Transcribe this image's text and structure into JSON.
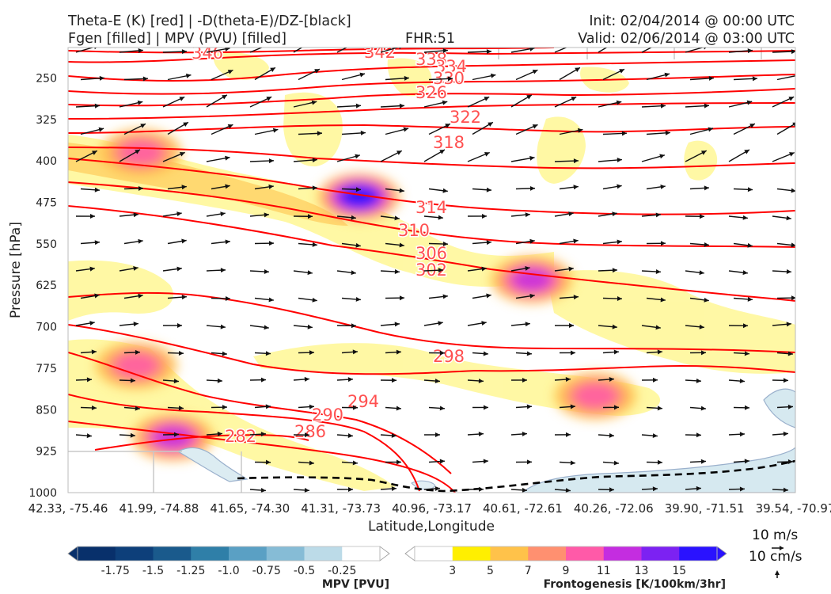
{
  "header": {
    "title_line1": "Theta-E (K) [red] | -D(theta-E)/DZ-[black]",
    "title_line2": "Fgen [filled] | MPV (PVU) [filled]",
    "fhr": "FHR:51",
    "init": "Init: 02/04/2014 @ 00:00 UTC",
    "valid": "Valid: 02/06/2014 @ 03:00 UTC"
  },
  "chart_data": {
    "type": "cross-section",
    "xlabel": "Latitude,Longitude",
    "ylabel": "Pressure [hPa]",
    "x_ticks": [
      "42.33, -75.46",
      "41.99, -74.88",
      "41.65, -74.30",
      "41.31, -73.73",
      "40.96, -73.17",
      "40.61, -72.61",
      "40.26, -72.06",
      "39.90, -71.51",
      "39.54, -70.97"
    ],
    "y_ticks": [
      250,
      325,
      400,
      475,
      550,
      625,
      700,
      775,
      850,
      925,
      1000
    ],
    "ylim": [
      1000,
      195
    ],
    "theta_e_labels": [
      346,
      342,
      338,
      334,
      330,
      326,
      322,
      318,
      314,
      310,
      306,
      302,
      298,
      294,
      290,
      286,
      282
    ],
    "theta_e_color": "#ff0000",
    "vector_color": "#111111",
    "fgen_maxima": [
      {
        "value": 15,
        "x": 3.2,
        "p": 465
      },
      {
        "value": 11,
        "x": 5.1,
        "p": 615
      },
      {
        "value": 9,
        "x": 0.8,
        "p": 385
      },
      {
        "value": 9,
        "x": 0.75,
        "p": 770
      },
      {
        "value": 11,
        "x": 1.15,
        "p": 900
      },
      {
        "value": 9,
        "x": 5.8,
        "p": 825
      }
    ]
  },
  "mpv_colorbar": {
    "label": "MPV [PVU]",
    "ticks": [
      "-1.75",
      "-1.5",
      "-1.25",
      "-1.0",
      "-0.75",
      "-0.5",
      "-0.25"
    ],
    "colors": [
      "#08306b",
      "#0d3f7a",
      "#1a5a8c",
      "#2f7fa8",
      "#5aa0c4",
      "#86bcd6",
      "#bcdbe8",
      "#ffffff"
    ]
  },
  "fgen_colorbar": {
    "label": "Frontogenesis [K/100km/3hr]",
    "ticks": [
      "3",
      "5",
      "7",
      "9",
      "11",
      "13",
      "15"
    ],
    "colors": [
      "#ffffff",
      "#ffef00",
      "#ffc24a",
      "#ff9070",
      "#ff5aa8",
      "#c42de0",
      "#7c22f2",
      "#2a12ff"
    ]
  },
  "vector_key": {
    "horizontal": "10 m/s",
    "vertical": "10 cm/s"
  }
}
